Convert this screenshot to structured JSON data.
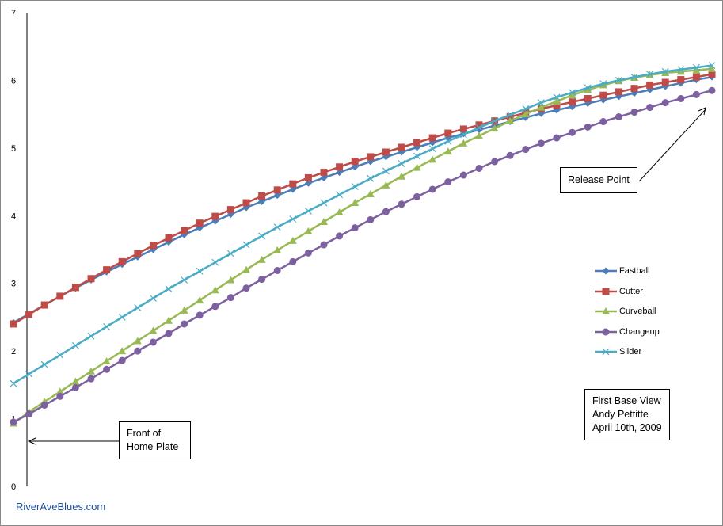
{
  "chart_data": {
    "type": "line",
    "title": "",
    "xlabel": "",
    "ylabel": "",
    "ylim": [
      0,
      7
    ],
    "y_ticks": [
      "0",
      "1",
      "2",
      "3",
      "4",
      "5",
      "6",
      "7"
    ],
    "grid": false,
    "legend_position": "right",
    "x": [
      0,
      1,
      2,
      3,
      4,
      5,
      6,
      7,
      8,
      9,
      10,
      11,
      12,
      13,
      14,
      15,
      16,
      17,
      18,
      19,
      20,
      21,
      22,
      23,
      24,
      25,
      26,
      27,
      28,
      29,
      30,
      31,
      32,
      33,
      34,
      35,
      36,
      37,
      38,
      39,
      40,
      41,
      42,
      43,
      44,
      45
    ],
    "series": [
      {
        "name": "Fastball",
        "color": "#4a7ebb",
        "marker": "diamond",
        "values": [
          2.42,
          2.55,
          2.68,
          2.81,
          2.93,
          3.05,
          3.17,
          3.28,
          3.39,
          3.5,
          3.61,
          3.72,
          3.82,
          3.92,
          4.02,
          4.12,
          4.21,
          4.3,
          4.39,
          4.48,
          4.56,
          4.64,
          4.72,
          4.8,
          4.87,
          4.94,
          5.01,
          5.08,
          5.15,
          5.21,
          5.27,
          5.33,
          5.39,
          5.45,
          5.51,
          5.56,
          5.61,
          5.66,
          5.71,
          5.76,
          5.81,
          5.86,
          5.91,
          5.96,
          6.01,
          6.05
        ]
      },
      {
        "name": "Cutter",
        "color": "#be4b48",
        "marker": "square",
        "values": [
          2.4,
          2.54,
          2.68,
          2.81,
          2.94,
          3.07,
          3.2,
          3.32,
          3.44,
          3.56,
          3.67,
          3.78,
          3.89,
          3.99,
          4.09,
          4.19,
          4.29,
          4.38,
          4.47,
          4.56,
          4.64,
          4.72,
          4.8,
          4.87,
          4.94,
          5.01,
          5.08,
          5.15,
          5.22,
          5.28,
          5.34,
          5.4,
          5.46,
          5.52,
          5.58,
          5.63,
          5.68,
          5.73,
          5.78,
          5.83,
          5.88,
          5.93,
          5.97,
          6.01,
          6.05,
          6.09
        ]
      },
      {
        "name": "Curveball",
        "color": "#98b954",
        "marker": "triangle",
        "values": [
          0.93,
          1.1,
          1.25,
          1.4,
          1.55,
          1.7,
          1.85,
          2.0,
          2.15,
          2.3,
          2.45,
          2.6,
          2.75,
          2.9,
          3.05,
          3.2,
          3.35,
          3.49,
          3.63,
          3.77,
          3.91,
          4.05,
          4.19,
          4.32,
          4.45,
          4.58,
          4.71,
          4.83,
          4.95,
          5.07,
          5.18,
          5.29,
          5.4,
          5.5,
          5.6,
          5.69,
          5.78,
          5.86,
          5.93,
          5.99,
          6.04,
          6.08,
          6.11,
          6.13,
          6.15,
          6.17
        ]
      },
      {
        "name": "Changeup",
        "color": "#7d60a0",
        "marker": "circle",
        "values": [
          0.95,
          1.07,
          1.2,
          1.33,
          1.46,
          1.59,
          1.73,
          1.86,
          2.0,
          2.13,
          2.26,
          2.4,
          2.53,
          2.66,
          2.79,
          2.93,
          3.06,
          3.19,
          3.32,
          3.45,
          3.57,
          3.7,
          3.82,
          3.94,
          4.06,
          4.17,
          4.28,
          4.39,
          4.5,
          4.6,
          4.7,
          4.8,
          4.89,
          4.98,
          5.07,
          5.15,
          5.23,
          5.31,
          5.39,
          5.46,
          5.53,
          5.6,
          5.67,
          5.73,
          5.79,
          5.85
        ]
      },
      {
        "name": "Slider",
        "color": "#4bacc6",
        "marker": "x",
        "values": [
          1.52,
          1.66,
          1.8,
          1.94,
          2.08,
          2.22,
          2.36,
          2.5,
          2.64,
          2.78,
          2.92,
          3.05,
          3.18,
          3.31,
          3.44,
          3.57,
          3.7,
          3.83,
          3.95,
          4.07,
          4.19,
          4.31,
          4.43,
          4.55,
          4.66,
          4.77,
          4.88,
          4.99,
          5.1,
          5.2,
          5.3,
          5.4,
          5.49,
          5.58,
          5.67,
          5.75,
          5.82,
          5.89,
          5.95,
          6.0,
          6.05,
          6.09,
          6.13,
          6.16,
          6.19,
          6.22
        ]
      }
    ],
    "annotations": [
      {
        "lines": [
          "Front of",
          "Home Plate"
        ]
      },
      {
        "lines": [
          "Release Point"
        ]
      },
      {
        "lines": [
          "First Base View",
          "Andy Pettitte",
          "April 10th, 2009"
        ]
      }
    ]
  },
  "labels": {
    "home_plate_line1": "Front of",
    "home_plate_line2": "Home Plate",
    "release_point": "Release Point",
    "info_line1": "First Base View",
    "info_line2": "Andy Pettitte",
    "info_line3": "April 10th, 2009",
    "watermark": "RiverAveBlues.com"
  },
  "legend": [
    {
      "label": "Fastball"
    },
    {
      "label": "Cutter"
    },
    {
      "label": "Curveball"
    },
    {
      "label": "Changeup"
    },
    {
      "label": "Slider"
    }
  ]
}
